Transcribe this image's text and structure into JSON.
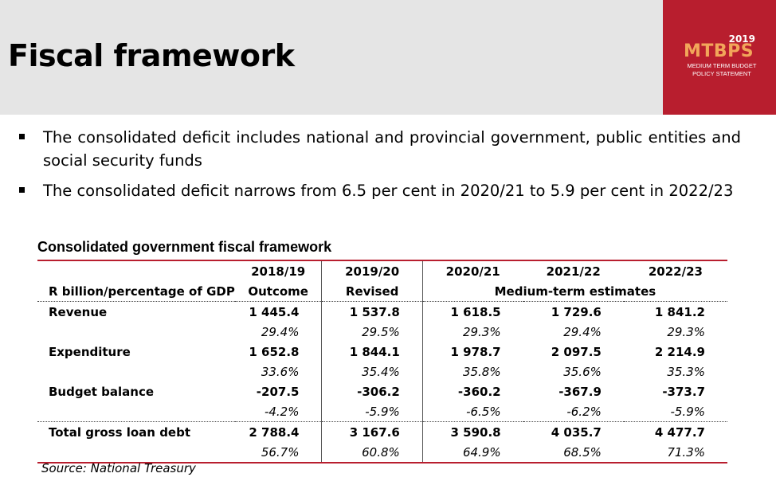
{
  "header": {
    "title": "Fiscal framework",
    "logo": {
      "year": "2019",
      "name": "MTBPS",
      "subtitle_line1": "MEDIUM TERM BUDGET",
      "subtitle_line2": "POLICY STATEMENT"
    }
  },
  "bullets": [
    "The consolidated deficit includes national and provincial government, public entities and social security funds",
    "The consolidated deficit narrows from 6.5 per cent in 2020/21 to 5.9 per cent in 2022/23"
  ],
  "table": {
    "title": "Consolidated government fiscal framework",
    "unit_label": "R billion/percentage of GDP",
    "years": [
      "2018/19",
      "2019/20",
      "2020/21",
      "2021/22",
      "2022/23"
    ],
    "col_types": [
      "Outcome",
      "Revised",
      "Medium-term estimates"
    ],
    "rows": [
      {
        "label": "Revenue",
        "values": [
          "1 445.4",
          "1 537.8",
          "1 618.5",
          "1 729.6",
          "1 841.2"
        ],
        "pct": [
          "29.4%",
          "29.5%",
          "29.3%",
          "29.4%",
          "29.3%"
        ]
      },
      {
        "label": "Expenditure",
        "values": [
          "1 652.8",
          "1 844.1",
          "1 978.7",
          "2 097.5",
          "2 214.9"
        ],
        "pct": [
          "33.6%",
          "35.4%",
          "35.8%",
          "35.6%",
          "35.3%"
        ]
      },
      {
        "label": "Budget balance",
        "values": [
          "-207.5",
          "-306.2",
          "-360.2",
          "-367.9",
          "-373.7"
        ],
        "pct": [
          "-4.2%",
          "-5.9%",
          "-6.5%",
          "-6.2%",
          "-5.9%"
        ]
      },
      {
        "label": "Total gross loan debt",
        "values": [
          "2 788.4",
          "3 167.6",
          "3 590.8",
          "4 035.7",
          "4 477.7"
        ],
        "pct": [
          "56.7%",
          "60.8%",
          "64.9%",
          "68.5%",
          "71.3%"
        ]
      }
    ],
    "source": "Source: National Treasury"
  },
  "colors": {
    "brand_red": "#b81e2e",
    "logo_accent": "#f2a65a",
    "header_bg": "#e5e5e5"
  }
}
